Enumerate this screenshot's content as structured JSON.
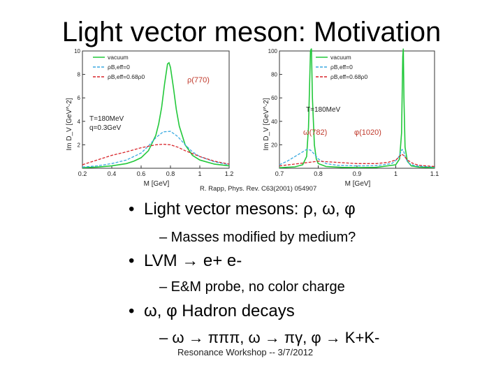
{
  "slide": {
    "title": "Light vector meson: Motivation",
    "credit": "R. Rapp, Phys. Rev. C63(2001) 054907",
    "footer": "Resonance Workshop -- 3/7/2012"
  },
  "bullets": [
    {
      "text": "Light vector mesons: ρ, ω, φ",
      "sub": "– Masses modified by medium?"
    },
    {
      "text": "LVM → e+ e-",
      "sub": "– E&M probe, no color charge"
    },
    {
      "text": "ω, φ Hadron decays",
      "sub": "– ω → πππ, ω → πγ, φ → K+K-"
    }
  ],
  "colors": {
    "vacuum": "#22c83a",
    "rho0": "#39a9e0",
    "rho068": "#d8242a"
  },
  "chart_data": [
    {
      "type": "line",
      "title": "",
      "xlabel": "M [GeV]",
      "ylabel": "Im D_V [GeV^-2]",
      "xlim": [
        0.2,
        1.2
      ],
      "ylim": [
        0,
        10
      ],
      "xticks": [
        "0.2",
        "0.4",
        "0.6",
        "0.8",
        "1",
        "1.2"
      ],
      "yticks": [
        "2",
        "4",
        "6",
        "8",
        "10"
      ],
      "annotations": [
        "ρ(770)",
        "T=180MeV",
        "q=0.3GeV"
      ],
      "series": [
        {
          "name": "vacuum",
          "x": [
            0.2,
            0.3,
            0.4,
            0.5,
            0.55,
            0.6,
            0.65,
            0.7,
            0.72,
            0.74,
            0.76,
            0.78,
            0.79,
            0.8,
            0.82,
            0.84,
            0.86,
            0.9,
            0.95,
            1.0,
            1.1,
            1.2
          ],
          "y": [
            0.05,
            0.1,
            0.2,
            0.4,
            0.6,
            0.9,
            1.5,
            2.8,
            3.8,
            5.2,
            7.2,
            8.9,
            9.0,
            8.6,
            6.9,
            5.0,
            3.6,
            2.0,
            1.1,
            0.7,
            0.35,
            0.2
          ]
        },
        {
          "name": "ρB,eff=0",
          "x": [
            0.2,
            0.3,
            0.4,
            0.5,
            0.6,
            0.65,
            0.7,
            0.75,
            0.8,
            0.85,
            0.9,
            0.95,
            1.0,
            1.1,
            1.2
          ],
          "y": [
            0.1,
            0.2,
            0.4,
            0.7,
            1.3,
            1.9,
            2.6,
            3.1,
            3.15,
            2.7,
            2.0,
            1.4,
            1.0,
            0.55,
            0.3
          ]
        },
        {
          "name": "ρB,eff=0.68ρ0",
          "x": [
            0.2,
            0.3,
            0.4,
            0.5,
            0.6,
            0.7,
            0.75,
            0.8,
            0.85,
            0.9,
            1.0,
            1.1,
            1.2
          ],
          "y": [
            0.3,
            0.7,
            1.1,
            1.4,
            1.75,
            2.0,
            2.05,
            2.0,
            1.8,
            1.5,
            1.0,
            0.6,
            0.35
          ]
        }
      ]
    },
    {
      "type": "line",
      "title": "",
      "xlabel": "M [GeV]",
      "ylabel": "Im D_V [GeV^-2]",
      "xlim": [
        0.7,
        1.1
      ],
      "ylim": [
        0,
        100
      ],
      "xticks": [
        "0.7",
        "0.8",
        "0.9",
        "1",
        "1.1"
      ],
      "yticks": [
        "20",
        "40",
        "60",
        "80",
        "100"
      ],
      "annotations": [
        "ω(782)",
        "φ(1020)",
        "T=180MeV"
      ],
      "series": [
        {
          "name": "vacuum",
          "x": [
            0.7,
            0.74,
            0.76,
            0.77,
            0.775,
            0.78,
            0.7825,
            0.785,
            0.79,
            0.795,
            0.8,
            0.82,
            0.86,
            0.9,
            0.95,
            1.0,
            1.01,
            1.015,
            1.018,
            1.0195,
            1.021,
            1.024,
            1.03,
            1.04,
            1.06,
            1.1
          ],
          "y": [
            0.5,
            1.2,
            3,
            10,
            35,
            100,
            102,
            60,
            20,
            8,
            4,
            1.5,
            0.8,
            0.6,
            0.8,
            3,
            8,
            30,
            95,
            102,
            60,
            18,
            6,
            2,
            1,
            0.5
          ]
        },
        {
          "name": "ρB,eff=0",
          "x": [
            0.7,
            0.72,
            0.74,
            0.76,
            0.77,
            0.78,
            0.79,
            0.8,
            0.82,
            0.85,
            0.9,
            0.95,
            0.99,
            1.005,
            1.012,
            1.016,
            1.02,
            1.026,
            1.035,
            1.05,
            1.1
          ],
          "y": [
            3,
            6,
            10,
            14,
            16,
            15.5,
            12,
            8,
            4,
            2.5,
            2,
            2.2,
            4,
            8,
            13,
            16,
            15,
            8,
            4,
            2,
            1
          ]
        },
        {
          "name": "ρB,eff=0.68ρ0",
          "x": [
            0.7,
            0.75,
            0.8,
            0.85,
            0.9,
            0.95,
            0.98,
            1.0,
            1.01,
            1.015,
            1.02,
            1.03,
            1.045,
            1.06,
            1.1
          ],
          "y": [
            2,
            4,
            6,
            5,
            4,
            4,
            5,
            7,
            10,
            12,
            11,
            7,
            4,
            2.5,
            1.5
          ]
        }
      ]
    }
  ]
}
